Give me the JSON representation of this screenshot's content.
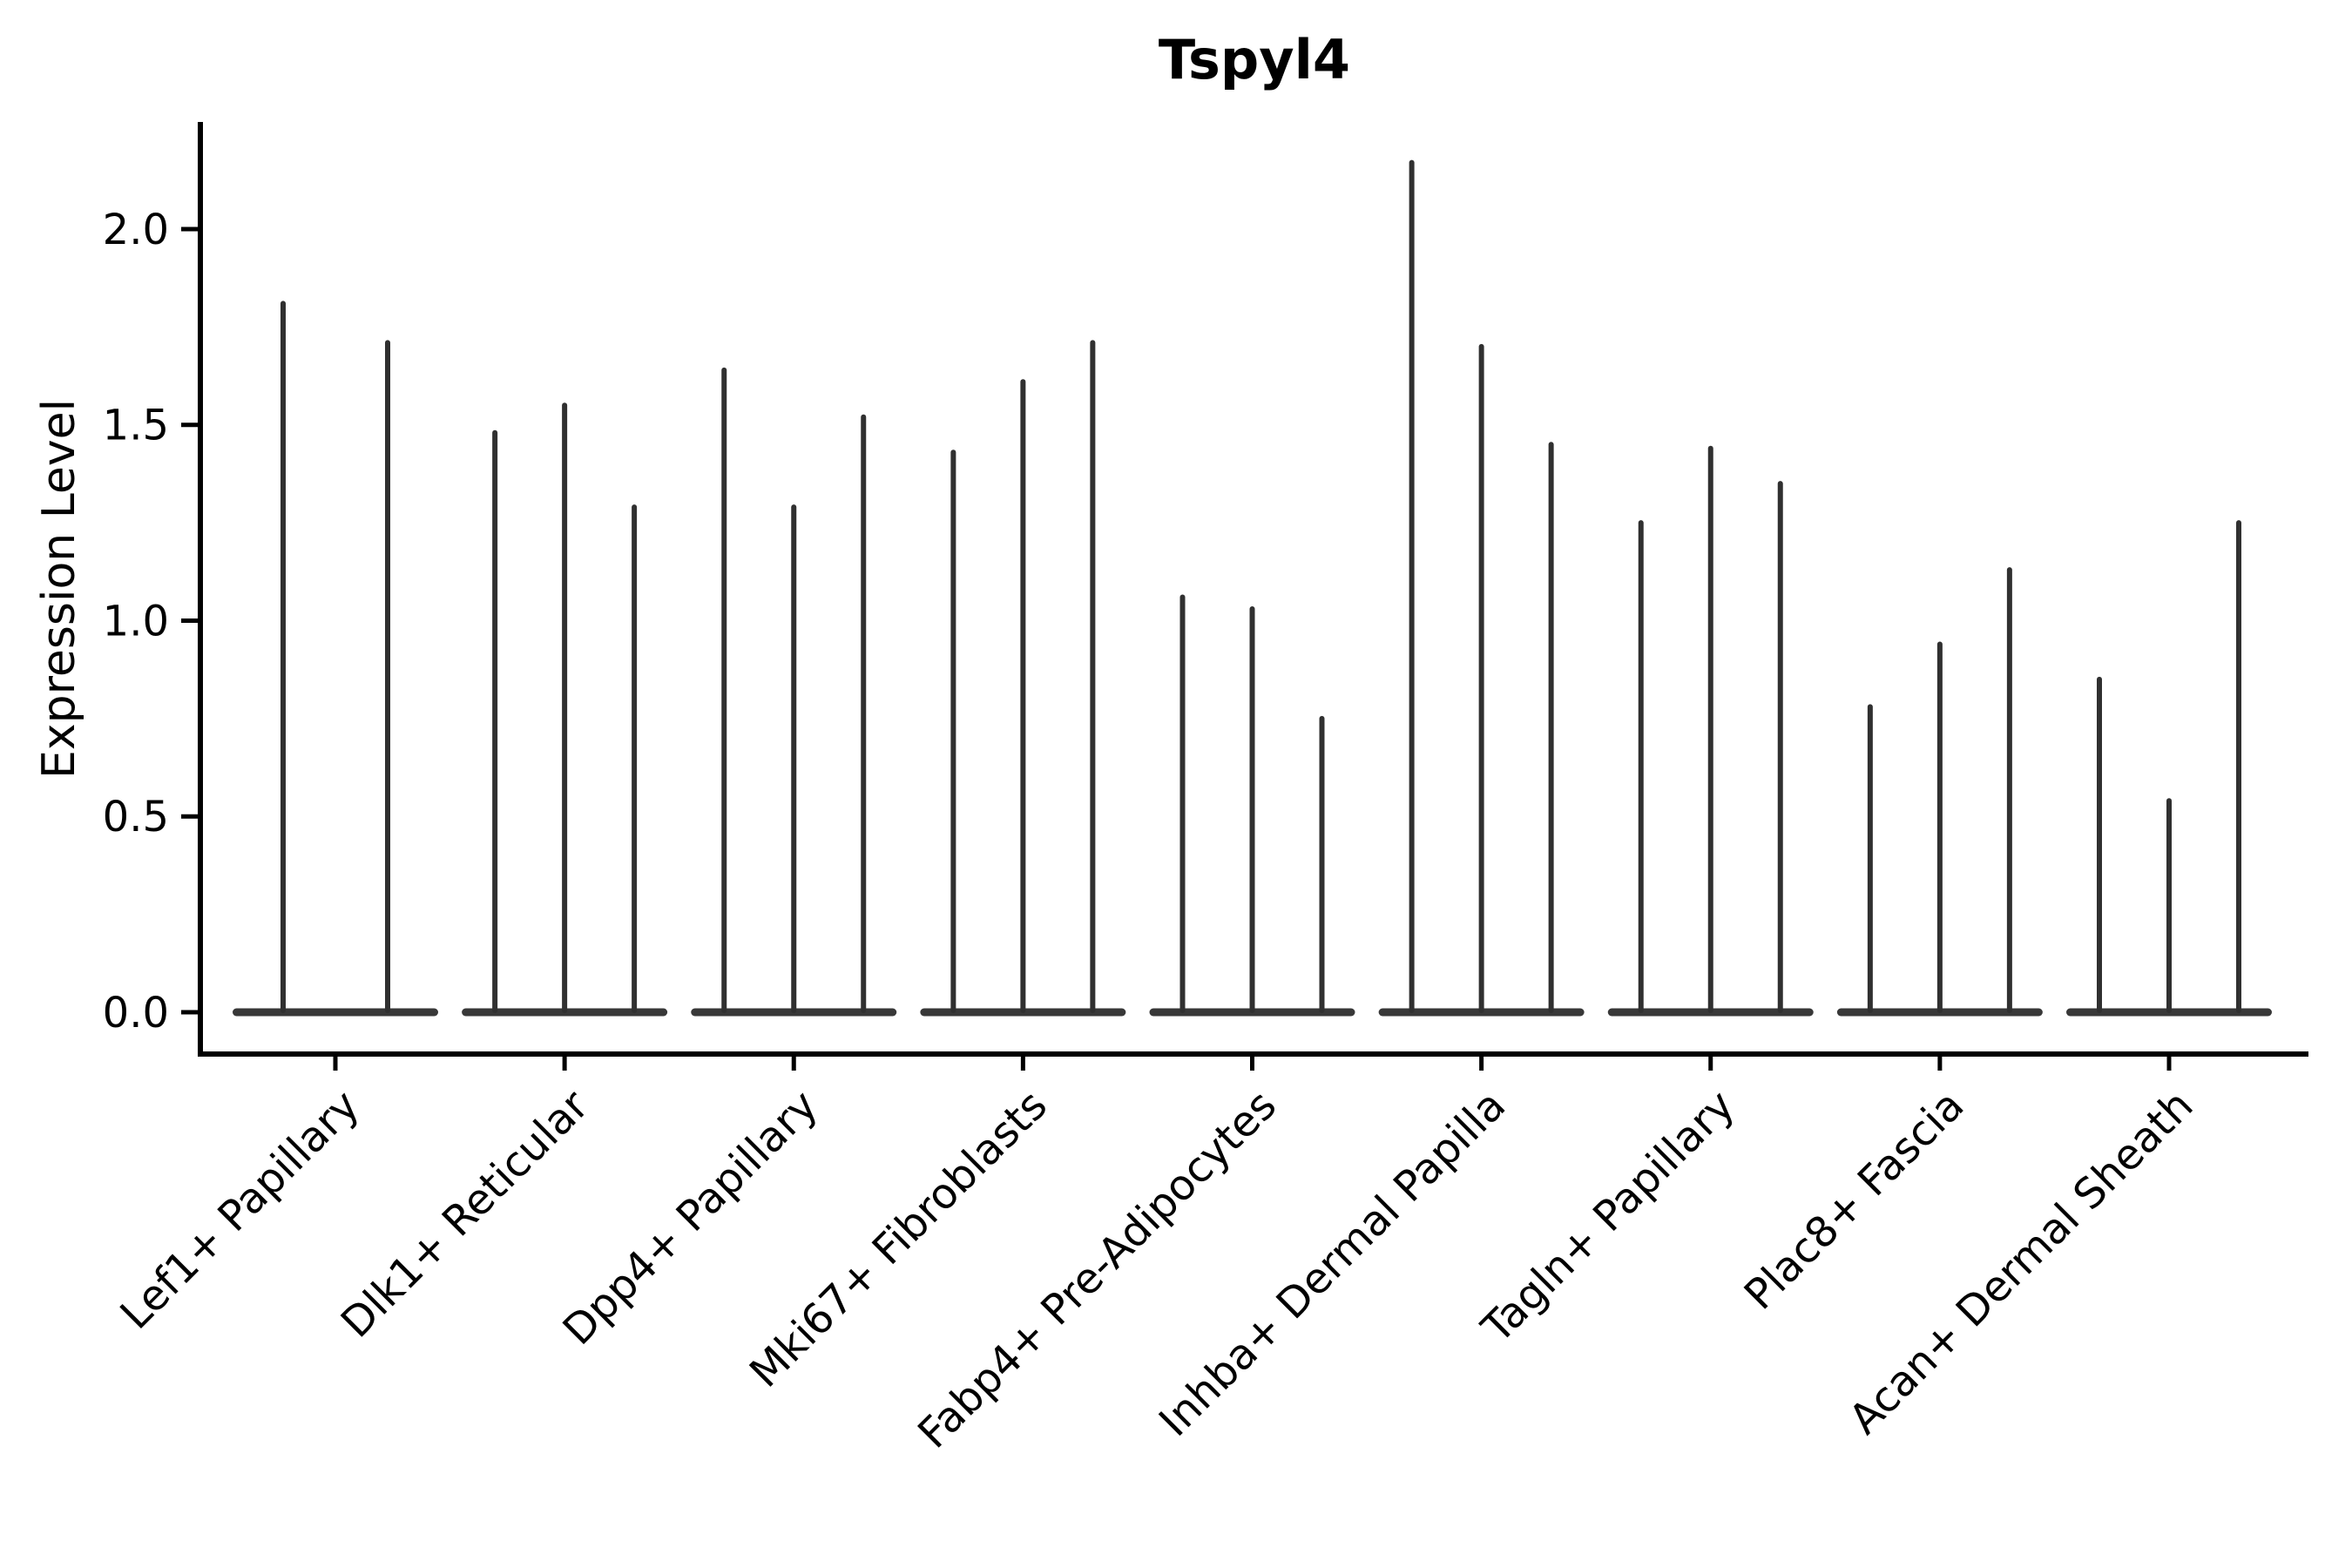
{
  "title": "Tspyl4",
  "y_axis": {
    "label": "Expression Level",
    "tick_labels": [
      "0.0",
      "0.5",
      "1.0",
      "1.5",
      "2.0"
    ]
  },
  "chart_data": {
    "type": "violin",
    "title": "Tspyl4",
    "xlabel": "",
    "ylabel": "Expression Level",
    "ylim": [
      -0.11,
      2.28
    ],
    "yticks": [
      0.0,
      0.5,
      1.0,
      1.5,
      2.0
    ],
    "grid": false,
    "legend": "none",
    "violin_color": "#383838",
    "spike_color": "#303030",
    "axis_color": "#000000",
    "description": "Each category shows narrow spike-shaped violins rising from a wide flat base at expression 0; violin_peaks are the maximum expression level reached by each violin in the group.",
    "categories": [
      "Lef1+ Papillary",
      "Dlk1+ Reticular",
      "Dpp4+ Papillary",
      "Mki67+ Fibroblasts",
      "Fabp4+ Pre-Adipocytes",
      "Inhba+ Dermal Papilla",
      "Tagln+ Papillary",
      "Plac8+ Fascia",
      "Acan+ Dermal Sheath"
    ],
    "groups": [
      {
        "category": "Lef1+ Papillary",
        "violin_peaks": [
          1.81,
          1.71
        ]
      },
      {
        "category": "Dlk1+ Reticular",
        "violin_peaks": [
          1.48,
          1.55,
          1.29
        ]
      },
      {
        "category": "Dpp4+ Papillary",
        "violin_peaks": [
          1.64,
          1.29,
          1.52
        ]
      },
      {
        "category": "Mki67+ Fibroblasts",
        "violin_peaks": [
          1.43,
          1.61,
          1.71
        ]
      },
      {
        "category": "Fabp4+ Pre-Adipocytes",
        "violin_peaks": [
          1.06,
          1.03,
          0.75
        ]
      },
      {
        "category": "Inhba+ Dermal Papilla",
        "violin_peaks": [
          2.17,
          1.7,
          1.45
        ]
      },
      {
        "category": "Tagln+ Papillary",
        "violin_peaks": [
          1.25,
          1.44,
          1.35
        ]
      },
      {
        "category": "Plac8+ Fascia",
        "violin_peaks": [
          0.78,
          0.94,
          1.13
        ]
      },
      {
        "category": "Acan+ Dermal Sheath",
        "violin_peaks": [
          0.85,
          0.54,
          1.25
        ]
      }
    ]
  }
}
